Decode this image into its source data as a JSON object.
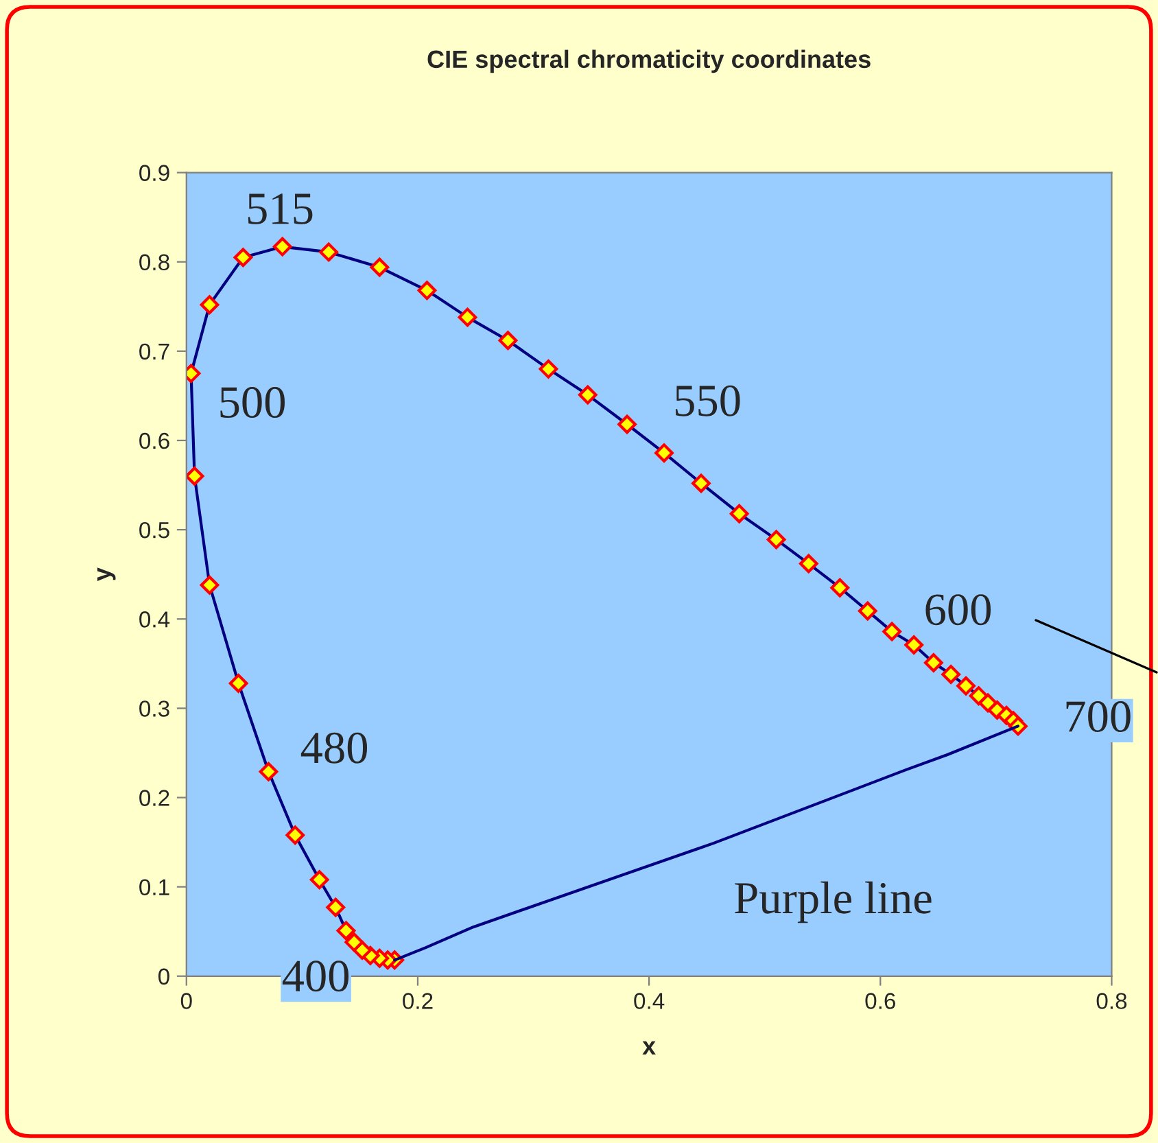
{
  "chart_data": {
    "type": "line",
    "title": "CIE spectral chromaticity coordinates",
    "xlabel": "x",
    "ylabel": "y",
    "xlim": [
      0,
      0.8
    ],
    "xticks": [
      0,
      0.2,
      0.4,
      0.6,
      0.8
    ],
    "ylim": [
      0,
      0.9
    ],
    "yticks": [
      0,
      0.1,
      0.2,
      0.3,
      0.4,
      0.5,
      0.6,
      0.7,
      0.8,
      0.9
    ],
    "grid": false,
    "legend": false,
    "series": [
      {
        "color": "#000080",
        "marker": "diamond",
        "x": [
          0.18,
          0.174,
          0.167,
          0.159,
          0.152,
          0.145,
          0.138,
          0.129,
          0.115,
          0.094,
          0.071,
          0.045,
          0.02,
          0.007,
          0.004,
          0.02,
          0.049,
          0.083,
          0.123,
          0.167,
          0.208,
          0.243,
          0.278,
          0.313,
          0.347,
          0.381,
          0.413,
          0.445,
          0.478,
          0.51,
          0.538,
          0.565,
          0.589,
          0.61,
          0.629,
          0.646,
          0.661,
          0.674,
          0.685,
          0.693,
          0.701,
          0.709,
          0.715,
          0.719
        ],
        "values": [
          0.018,
          0.018,
          0.02,
          0.023,
          0.029,
          0.038,
          0.051,
          0.077,
          0.108,
          0.158,
          0.229,
          0.328,
          0.438,
          0.56,
          0.675,
          0.752,
          0.805,
          0.817,
          0.811,
          0.794,
          0.768,
          0.738,
          0.712,
          0.68,
          0.651,
          0.618,
          0.586,
          0.552,
          0.518,
          0.489,
          0.462,
          0.435,
          0.409,
          0.386,
          0.371,
          0.351,
          0.338,
          0.325,
          0.314,
          0.306,
          0.298,
          0.292,
          0.286,
          0.28
        ]
      },
      {
        "color": "#000080",
        "marker": "none",
        "x": [
          0.719,
          0.658,
          0.622,
          0.456,
          0.248,
          0.207,
          0.18
        ],
        "values": [
          0.28,
          0.248,
          0.231,
          0.149,
          0.055,
          0.032,
          0.018
        ]
      }
    ],
    "annotations": [
      "515",
      "500",
      "550",
      "600",
      "700",
      "480",
      "400",
      "Purple line"
    ]
  }
}
